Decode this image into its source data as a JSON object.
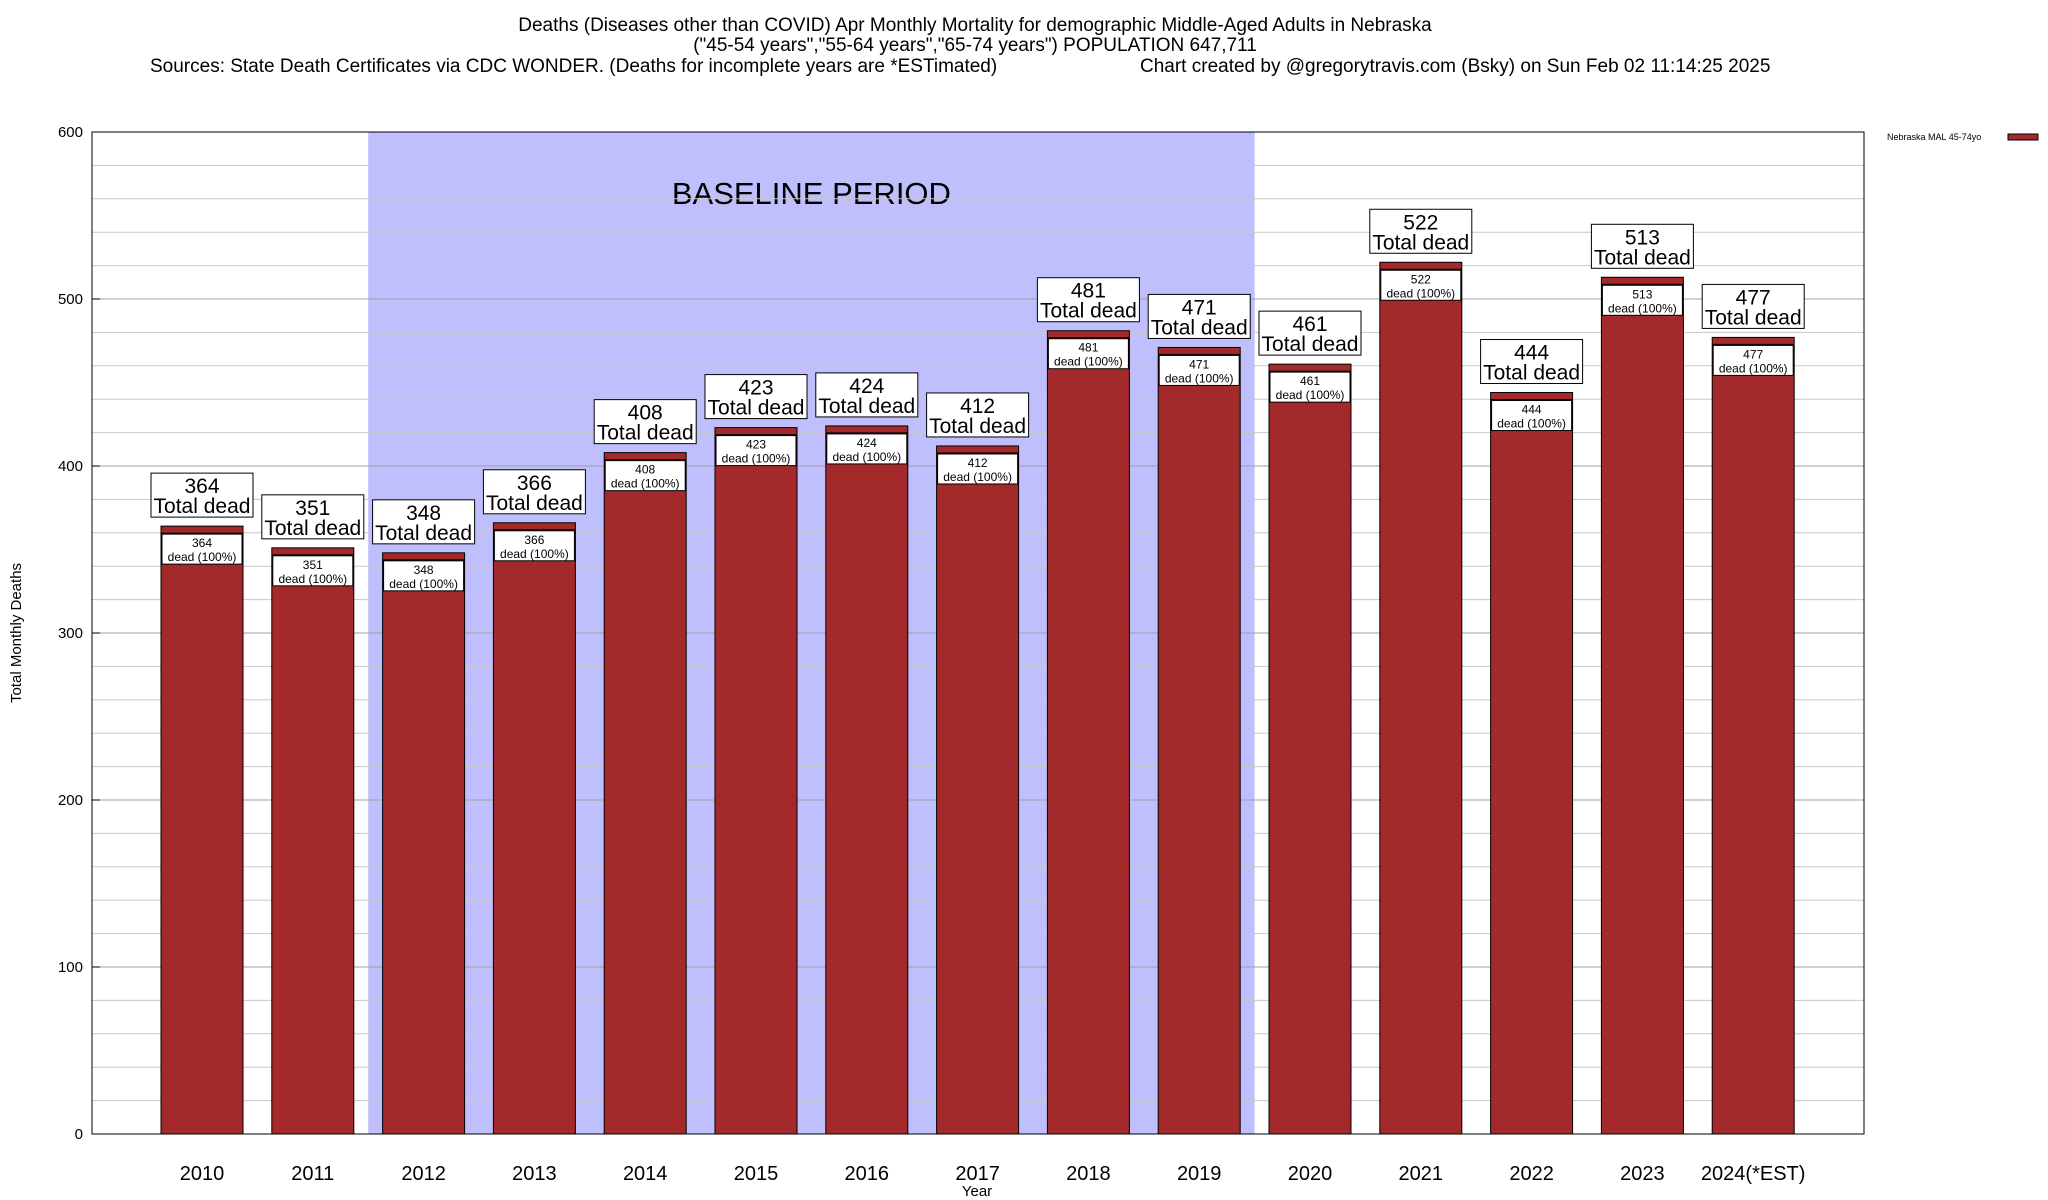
{
  "chart_data": {
    "type": "bar",
    "title": "Deaths (Diseases other than COVID) Apr Monthly Mortality for demographic Middle-Aged Adults in Nebraska",
    "subtitle": "(\"45-54 years\",\"55-64 years\",\"65-74 years\") POPULATION 647,711",
    "sources": "Sources: State Death Certificates via CDC WONDER. (Deaths for incomplete years are *ESTimated)",
    "credit": "Chart created by @gregorytravis.com (Bsky) on Sun Feb 02 11:14:25 2025",
    "xlabel": "Year",
    "ylabel": "Total Monthly Deaths",
    "ylim": [
      0,
      600
    ],
    "yticks": [
      0,
      100,
      200,
      300,
      400,
      500,
      600
    ],
    "grid": true,
    "legend_position": "top-right",
    "categories": [
      "2010",
      "2011",
      "2012",
      "2013",
      "2014",
      "2015",
      "2016",
      "2017",
      "2018",
      "2019",
      "2020",
      "2021",
      "2022",
      "2023",
      "2024(*EST)"
    ],
    "series": [
      {
        "name": "Nebraska MAL 45-74yo",
        "color": "#a3292b",
        "values": [
          364,
          351,
          348,
          366,
          408,
          423,
          424,
          412,
          481,
          471,
          461,
          522,
          444,
          513,
          477
        ]
      }
    ],
    "total_label_suffix": "Total dead",
    "inner_label_suffix": "dead (100%)",
    "baseline_period": {
      "label": "BASELINE PERIOD",
      "start_category": "2012",
      "end_category": "2019",
      "color": "#bfbffd"
    }
  }
}
